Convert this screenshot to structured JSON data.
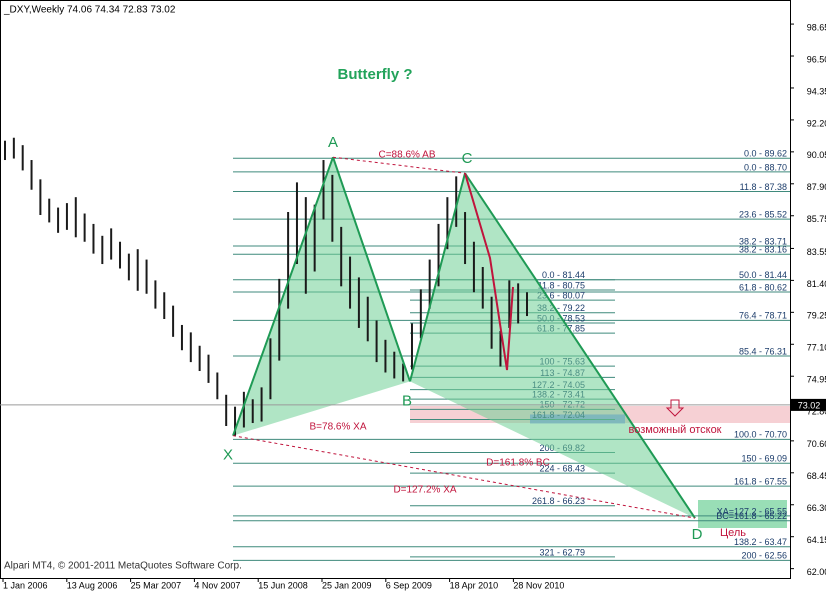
{
  "chart_data": {
    "type": "hilo",
    "header": "_DXY,Weekly  74.06 74.34 72.83 73.02",
    "title": "Butterfly ?",
    "copyright": "Alpari MT4, © 2001-2011 MetaQuotes Software Corp.",
    "x_labels": [
      "1 Jan 2006",
      "13 Aug 2006",
      "25 Mar 2007",
      "4 Nov 2007",
      "15 Jun 2008",
      "25 Jan 2009",
      "6 Sep 2009",
      "18 Apr 2010",
      "28 Nov 2010"
    ],
    "ylim": [
      61.37,
      100.27
    ],
    "yticks": [
      98.65,
      {
        "value": 96.5,
        "label": "96.50"
      },
      94.35,
      {
        "value": 92.2,
        "label": "92.20"
      },
      90.05,
      {
        "value": 87.9,
        "label": "87.90"
      },
      85.75,
      83.55,
      {
        "value": 81.4,
        "label": "81.40"
      },
      79.25,
      {
        "value": 77.1,
        "label": "77.10"
      },
      74.95,
      {
        "value": 72.8,
        "label": "72.80"
      },
      {
        "value": 70.6,
        "label": "70.60"
      },
      68.45,
      {
        "value": 66.3,
        "label": "66.30"
      },
      64.15,
      {
        "value": 62,
        "label": "62.00"
      }
    ],
    "current_price": 73.02,
    "color": "#1a1a1a",
    "high": [
      90.8,
      91.0,
      90.5,
      89.5,
      88.2,
      86.9,
      86.3,
      86.6,
      87.0,
      85.9,
      85.2,
      84.4,
      84.9,
      84.0,
      83.2,
      83.5,
      82.8,
      81.4,
      80.6,
      79.7,
      78.4,
      77.9,
      77.0,
      76.4,
      75.2,
      73.7,
      72.9,
      73.9,
      73.4,
      74.2,
      77.5,
      81.5,
      86.0,
      88.0,
      87.0,
      86.5,
      89.5,
      88.5,
      85.0,
      83.0,
      81.6,
      80.3,
      78.7,
      77.4,
      76.6,
      75.8,
      78.5,
      80.8,
      82.8,
      85.2,
      87.0,
      88.4,
      86.0,
      84.0,
      82.3,
      80.3,
      78.0,
      81.4,
      81.2,
      80.6
    ],
    "low": [
      89.5,
      89.6,
      88.8,
      87.5,
      85.8,
      85.3,
      84.6,
      84.8,
      84.3,
      84.0,
      83.2,
      82.5,
      82.8,
      82.2,
      81.4,
      80.7,
      80.5,
      79.5,
      78.8,
      77.6,
      76.7,
      75.9,
      75.3,
      74.5,
      73.4,
      71.6,
      70.95,
      71.5,
      71.8,
      71.9,
      73.4,
      76.0,
      79.5,
      82.5,
      80.5,
      82.0,
      85.5,
      84.0,
      81.0,
      79.5,
      78.2,
      77.3,
      75.9,
      75.2,
      74.8,
      74.6,
      75.4,
      77.5,
      79.5,
      81.0,
      83.5,
      85.0,
      82.5,
      80.6,
      79.5,
      76.8,
      75.6,
      78.2,
      78.5,
      79.0
    ],
    "pattern": [
      {
        "label": "X",
        "price": 70.95
      },
      {
        "label": "A",
        "price": 89.69
      },
      {
        "label": "B",
        "price": 74.6
      },
      {
        "label": "C",
        "price": 88.61
      },
      {
        "label": "D",
        "price": 65.4
      }
    ],
    "fib_xa": [
      {
        "value": 89.62,
        "label": "0.0 - 89.62"
      },
      {
        "value": 88.7,
        "label": "0.0 - 88.70"
      },
      {
        "value": 87.38,
        "label": "11.8 - 87.38"
      },
      {
        "value": 85.52,
        "label": "23.6 - 85.52"
      },
      {
        "value": 83.71,
        "label": "38.2 - 83.71"
      },
      {
        "value": 83.16,
        "label": "38.2 - 83.16"
      },
      {
        "value": 81.44,
        "label": "50.0 - 81.44"
      },
      {
        "value": 80.62,
        "label": "61.8 - 80.62"
      },
      {
        "value": 78.71,
        "label": "76.4 - 78.71"
      },
      {
        "value": 76.31,
        "label": "85.4 - 76.31"
      },
      {
        "value": 70.7,
        "label": "100.0 - 70.70"
      },
      {
        "value": 69.09,
        "label": "150 - 69.09"
      },
      {
        "value": 67.55,
        "label": "161.8 - 67.55"
      },
      {
        "value": 65.55,
        "label": "XA=127.2 - 65.55"
      },
      {
        "value": 65.22,
        "label": "BC=161.8 - 65.22"
      },
      {
        "value": 63.47,
        "label": "138.2 - 63.47"
      },
      {
        "value": 62.56,
        "label": "200 - 62.56"
      }
    ],
    "fib_bc": [
      {
        "value": 81.44,
        "label": "0.0 - 81.44"
      },
      {
        "value": 80.75,
        "label": "11.8 - 80.75"
      },
      {
        "value": 80.07,
        "label": "23.6 - 80.07"
      },
      {
        "value": 79.22,
        "label": "38.2 - 79.22"
      },
      {
        "value": 78.53,
        "label": "50.0 - 78.53"
      },
      {
        "value": 77.85,
        "label": "61.8 - 77.85"
      },
      {
        "value": 75.63,
        "label": "100 - 75.63"
      },
      {
        "value": 74.87,
        "label": "113 - 74.87"
      },
      {
        "value": 74.05,
        "label": "127.2 - 74.05"
      },
      {
        "value": 73.41,
        "label": "138.2 - 73.41"
      },
      {
        "value": 72.72,
        "label": "150 - 72.72"
      },
      {
        "value": 72.04,
        "label": "161.8 - 72.04"
      },
      {
        "value": 69.82,
        "label": "200 - 69.82"
      },
      {
        "value": 68.43,
        "label": "224 - 68.43"
      },
      {
        "value": 66.23,
        "label": "261.8 - 66.23"
      },
      {
        "value": 62.79,
        "label": "321 - 62.79"
      }
    ],
    "annotations": [
      {
        "text": "C=88.6% AB",
        "color": "#c0143c"
      },
      {
        "text": "B=78.6% XA",
        "color": "#c0143c"
      },
      {
        "text": "D=161.8% BC",
        "color": "#c0143c"
      },
      {
        "text": "D=127.2% XA",
        "color": "#c0143c"
      },
      {
        "text": "возможный отскок",
        "color": "#c0143c"
      },
      {
        "text": "Цель",
        "color": "#c0143c"
      }
    ]
  }
}
